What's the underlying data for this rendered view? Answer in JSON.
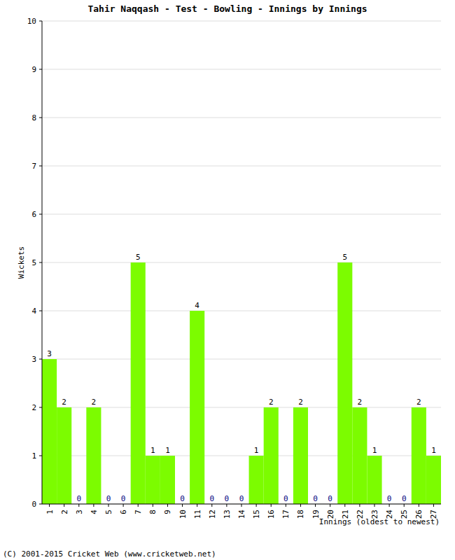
{
  "chart_data": {
    "type": "bar",
    "title": "Tahir Naqqash - Test - Bowling - Innings by Innings",
    "x_label": "Innings (oldest to newest)",
    "y_label": "Wickets",
    "footer": "(C) 2001-2015 Cricket Web (www.cricketweb.net)",
    "categories": [
      "1",
      "2",
      "3",
      "4",
      "5",
      "6",
      "7",
      "8",
      "9",
      "10",
      "11",
      "12",
      "13",
      "14",
      "15",
      "16",
      "17",
      "18",
      "19",
      "20",
      "21",
      "22",
      "23",
      "24",
      "25",
      "26",
      "27"
    ],
    "values": [
      3,
      2,
      0,
      2,
      0,
      0,
      5,
      1,
      1,
      0,
      4,
      0,
      0,
      0,
      1,
      2,
      0,
      2,
      0,
      0,
      5,
      2,
      1,
      0,
      0,
      2,
      1
    ],
    "color": "#7cfc00",
    "ylim": [
      0,
      10
    ],
    "yticks": [
      0,
      1,
      2,
      3,
      4,
      5,
      6,
      7,
      8,
      9,
      10
    ],
    "grid": true,
    "data_labels": true
  }
}
